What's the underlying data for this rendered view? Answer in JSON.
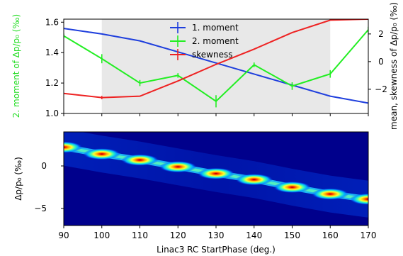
{
  "chart_data": [
    {
      "type": "line",
      "x": [
        90,
        100,
        110,
        120,
        130,
        140,
        150,
        160,
        170
      ],
      "xlim": [
        90,
        170
      ],
      "shaded_region": [
        100,
        160
      ],
      "left_axis": {
        "ylabel": "2. moment of Δp/p₀ (‰)",
        "ylabel_color": "#22dd22",
        "ylim": [
          1.0,
          1.62
        ],
        "ticks": [
          1.0,
          1.2,
          1.4,
          1.6
        ]
      },
      "right_axis": {
        "ylabel": "mean, skewness of Δp/p₀ (‰)",
        "ylim": [
          -3.75,
          3.07
        ],
        "ticks": [
          -2,
          0,
          2
        ]
      },
      "series": [
        {
          "name": "1. moment",
          "color": "#1f3fdd",
          "axis": "right",
          "values": [
            2.4,
            2.0,
            1.5,
            0.7,
            -0.1,
            -0.9,
            -1.7,
            -2.5,
            -3.0
          ]
        },
        {
          "name": "2. moment",
          "color": "#22ee22",
          "axis": "left",
          "values": [
            1.51,
            1.36,
            1.2,
            1.25,
            1.08,
            1.32,
            1.18,
            1.26,
            1.55
          ],
          "errors": [
            0.015,
            0.03,
            0.02,
            0.015,
            0.04,
            0.015,
            0.025,
            0.025,
            0.02
          ]
        },
        {
          "name": "skewness",
          "color": "#ee2222",
          "axis": "right",
          "values": [
            -2.3,
            -2.6,
            -2.5,
            -1.4,
            -0.2,
            0.9,
            2.1,
            3.0,
            3.07
          ],
          "errors": [
            0,
            0.12,
            0,
            0,
            0,
            0,
            0,
            0,
            0
          ]
        }
      ],
      "legend": "top-center"
    },
    {
      "type": "heatmap",
      "xlabel": "Linac3 RC StartPhase (deg.)",
      "ylabel": "Δp/p₀ (‰)",
      "xlim": [
        90,
        170
      ],
      "ylim": [
        -7,
        4
      ],
      "xticks": [
        90,
        100,
        110,
        120,
        130,
        140,
        150,
        160,
        170
      ],
      "yticks": [
        -5,
        0
      ],
      "colormap": "jet",
      "peaks": [
        {
          "x": 90,
          "y": 2.2
        },
        {
          "x": 100,
          "y": 1.4
        },
        {
          "x": 110,
          "y": 0.7
        },
        {
          "x": 120,
          "y": -0.1
        },
        {
          "x": 130,
          "y": -0.9
        },
        {
          "x": 140,
          "y": -1.6
        },
        {
          "x": 150,
          "y": -2.5
        },
        {
          "x": 160,
          "y": -3.3
        },
        {
          "x": 170,
          "y": -3.9
        }
      ]
    }
  ]
}
